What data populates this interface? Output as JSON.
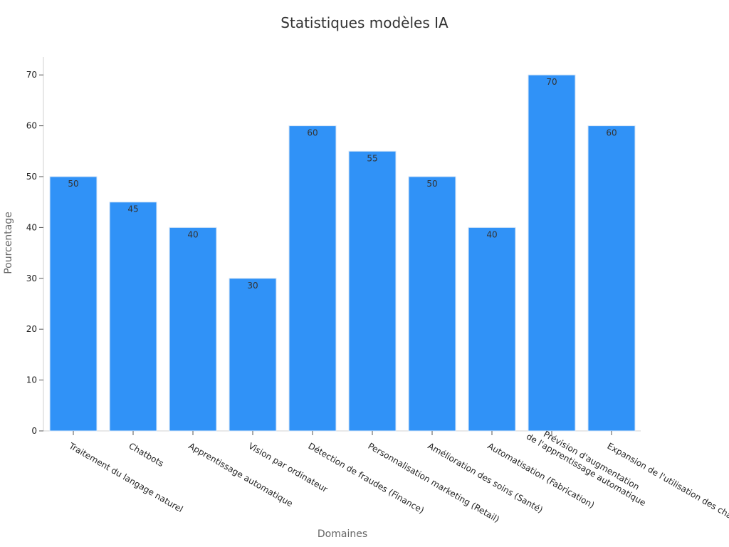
{
  "chart_data": {
    "type": "bar",
    "title": "Statistiques modèles IA",
    "xlabel": "Domaines",
    "ylabel": "Pourcentage",
    "categories": [
      "Traitement du langage naturel",
      "Chatbots",
      "Apprentissage automatique",
      "Vision par ordinateur",
      "Détection de fraudes (Finance)",
      "Personnalisation marketing (Retail)",
      "Amélioration des soins (Santé)",
      "Automatisation (Fabrication)",
      "Prévision d'augmentation de l'apprentissage automatique",
      "Expansion de l'utilisation des chatbots"
    ],
    "values": [
      50,
      45,
      40,
      30,
      60,
      55,
      50,
      40,
      70,
      60
    ],
    "ylim": [
      0,
      74
    ],
    "yticks": [
      0,
      10,
      20,
      30,
      40,
      50,
      60,
      70
    ],
    "grid": false,
    "data_labels": true,
    "bar_color": "#3092F7",
    "bar_edge_color": "#d6e6f7",
    "axis_color": "#d0d0d0",
    "tick_label_color": "#222222",
    "data_label_color": "#333333"
  }
}
